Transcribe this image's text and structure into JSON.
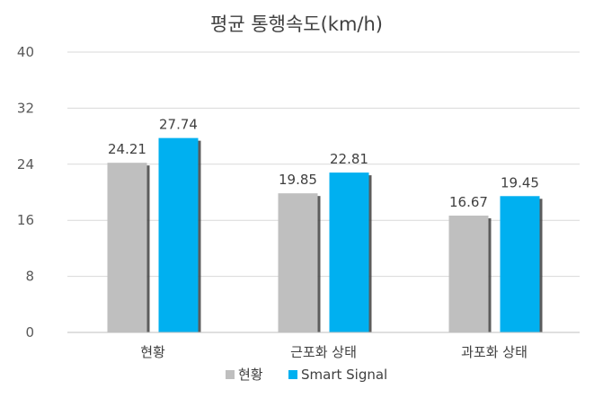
{
  "chart_data": {
    "type": "bar",
    "title": "평균 통행속도(km/h)",
    "categories": [
      "현황",
      "근포화 상태",
      "과포화 상태"
    ],
    "series": [
      {
        "name": "현황",
        "values": [
          24.21,
          19.85,
          16.67
        ],
        "color": "#bfbfbf",
        "labels": [
          "24.21",
          "19.85",
          "16.67"
        ]
      },
      {
        "name": "Smart Signal",
        "values": [
          27.74,
          22.81,
          19.45
        ],
        "color": "#00b0f0",
        "labels": [
          "27.74",
          "22.81",
          "19.45"
        ]
      }
    ],
    "ylim": [
      0,
      40
    ],
    "yticks": [
      "0",
      "8",
      "16",
      "24",
      "32",
      "40"
    ],
    "grid": true,
    "legend": "bottom"
  }
}
